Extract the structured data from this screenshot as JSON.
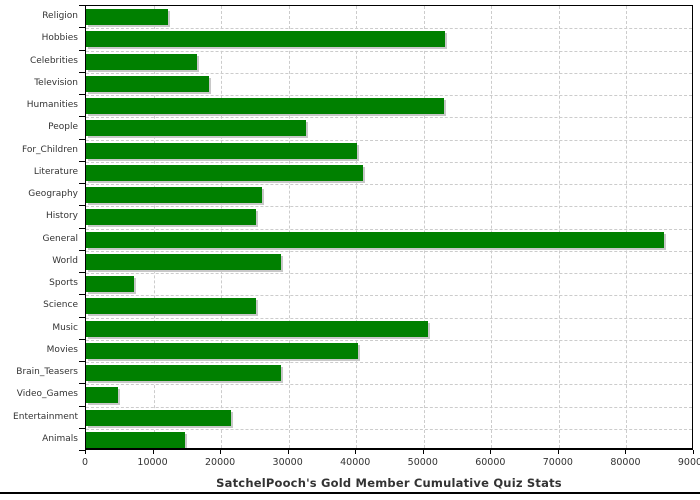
{
  "chart_data": {
    "type": "bar",
    "orientation": "horizontal",
    "xlabel": "SatchelPooch's Gold Member Cumulative Quiz Stats",
    "ylabel": "",
    "categories": [
      "Religion",
      "Hobbies",
      "Celebrities",
      "Television",
      "Humanities",
      "People",
      "For_Children",
      "Literature",
      "Geography",
      "History",
      "General",
      "World",
      "Sports",
      "Science",
      "Music",
      "Movies",
      "Brain_Teasers",
      "Video_Games",
      "Entertainment",
      "Animals"
    ],
    "values": [
      12100,
      53100,
      16500,
      18200,
      53000,
      32500,
      40100,
      41000,
      26100,
      25200,
      85600,
      28800,
      7100,
      25200,
      50600,
      40300,
      28800,
      4700,
      21500,
      14600
    ],
    "xlim": [
      0,
      90000
    ],
    "x_ticks": [
      0,
      10000,
      20000,
      30000,
      40000,
      50000,
      60000,
      70000,
      80000,
      90000
    ],
    "x_tick_labels": [
      "0",
      "10000",
      "20000",
      "30000",
      "40000",
      "50000",
      "60000",
      "70000",
      "80000",
      "90000"
    ],
    "grid": "dashed",
    "legend_position": "none",
    "colors": {
      "bar": "#008000",
      "bar_shadow": "#c8c8c8",
      "gridline": "#cccccc",
      "text": "#333333",
      "axis": "#000000",
      "background": "#ffffff"
    }
  }
}
